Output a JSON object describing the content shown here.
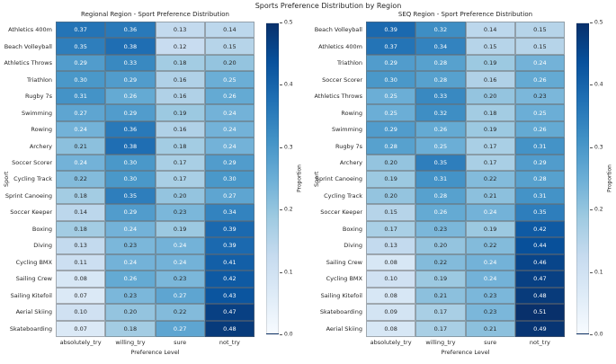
{
  "figure": {
    "title": "Sports Preference Distribution by Region"
  },
  "colorbar": {
    "label": "Proportion",
    "ticks": [
      0.5,
      0.4,
      0.3,
      0.2,
      0.1,
      0.0
    ],
    "vmin": 0.0,
    "vmax": 0.5
  },
  "colors": {
    "background": "#ffffff",
    "dark_text": "#262626",
    "light_text": "#ffffff",
    "cell_border_gray": "#696969",
    "blues_colormap_stops": [
      "#f7fbff",
      "#deebf7",
      "#c6dbef",
      "#9ecae1",
      "#6baed6",
      "#4292c6",
      "#2171b5",
      "#08519c",
      "#08306b"
    ]
  },
  "chart_data": [
    {
      "type": "heatmap",
      "title": "Regional Region - Sport Preference Distribution",
      "xlabel": "Preference Level",
      "ylabel": "Sport",
      "colormap": "Blues",
      "vmin": 0.0,
      "vmax": 0.5,
      "colorbar_label": "Proportion",
      "columns": [
        "absolutely_try",
        "willing_try",
        "sure",
        "not_try"
      ],
      "rows": [
        "Athletics 400m",
        "Beach Volleyball",
        "Athletics Throws",
        "Triathlon",
        "Rugby 7s",
        "Swimming",
        "Rowing",
        "Archery",
        "Soccer Scorer",
        "Cycling Track",
        "Sprint Canoeing",
        "Soccer Keeper",
        "Boxing",
        "Diving",
        "Cycling BMX",
        "Sailing Crew",
        "Sailing Kitefoil",
        "Aerial Skiing",
        "Skateboarding"
      ],
      "values": [
        [
          0.37,
          0.36,
          0.13,
          0.14
        ],
        [
          0.35,
          0.38,
          0.12,
          0.15
        ],
        [
          0.29,
          0.33,
          0.18,
          0.2
        ],
        [
          0.3,
          0.29,
          0.16,
          0.25
        ],
        [
          0.31,
          0.26,
          0.16,
          0.26
        ],
        [
          0.27,
          0.29,
          0.19,
          0.24
        ],
        [
          0.24,
          0.36,
          0.16,
          0.24
        ],
        [
          0.21,
          0.38,
          0.18,
          0.24
        ],
        [
          0.24,
          0.3,
          0.17,
          0.29
        ],
        [
          0.22,
          0.3,
          0.17,
          0.3
        ],
        [
          0.18,
          0.35,
          0.2,
          0.27
        ],
        [
          0.14,
          0.29,
          0.23,
          0.34
        ],
        [
          0.18,
          0.24,
          0.19,
          0.39
        ],
        [
          0.13,
          0.23,
          0.24,
          0.39
        ],
        [
          0.11,
          0.24,
          0.24,
          0.41
        ],
        [
          0.08,
          0.26,
          0.23,
          0.42
        ],
        [
          0.07,
          0.23,
          0.27,
          0.43
        ],
        [
          0.1,
          0.2,
          0.22,
          0.47
        ],
        [
          0.07,
          0.18,
          0.27,
          0.48
        ]
      ]
    },
    {
      "type": "heatmap",
      "title": "SEQ Region - Sport Preference Distribution",
      "xlabel": "Preference Level",
      "ylabel": "Sport",
      "colormap": "Blues",
      "vmin": 0.0,
      "vmax": 0.5,
      "colorbar_label": "Proportion",
      "columns": [
        "absolutely_try",
        "willing_try",
        "sure",
        "not_try"
      ],
      "rows": [
        "Beach Volleyball",
        "Athletics 400m",
        "Triathlon",
        "Soccer Scorer",
        "Athletics Throws",
        "Rowing",
        "Swimming",
        "Rugby 7s",
        "Archery",
        "Sprint Canoeing",
        "Cycling Track",
        "Soccer Keeper",
        "Boxing",
        "Diving",
        "Sailing Crew",
        "Cycling BMX",
        "Sailing Kitefoil",
        "Skateboarding",
        "Aerial Skiing"
      ],
      "values": [
        [
          0.39,
          0.32,
          0.14,
          0.15
        ],
        [
          0.37,
          0.34,
          0.15,
          0.15
        ],
        [
          0.29,
          0.28,
          0.19,
          0.24
        ],
        [
          0.3,
          0.28,
          0.16,
          0.26
        ],
        [
          0.25,
          0.33,
          0.2,
          0.23
        ],
        [
          0.25,
          0.32,
          0.18,
          0.25
        ],
        [
          0.29,
          0.26,
          0.19,
          0.26
        ],
        [
          0.28,
          0.25,
          0.17,
          0.31
        ],
        [
          0.2,
          0.35,
          0.17,
          0.29
        ],
        [
          0.19,
          0.31,
          0.22,
          0.28
        ],
        [
          0.2,
          0.28,
          0.21,
          0.31
        ],
        [
          0.15,
          0.26,
          0.24,
          0.35
        ],
        [
          0.17,
          0.23,
          0.19,
          0.42
        ],
        [
          0.13,
          0.2,
          0.22,
          0.44
        ],
        [
          0.08,
          0.22,
          0.24,
          0.46
        ],
        [
          0.1,
          0.19,
          0.24,
          0.47
        ],
        [
          0.08,
          0.21,
          0.23,
          0.48
        ],
        [
          0.09,
          0.17,
          0.23,
          0.51
        ],
        [
          0.08,
          0.17,
          0.21,
          0.49
        ]
      ]
    }
  ]
}
